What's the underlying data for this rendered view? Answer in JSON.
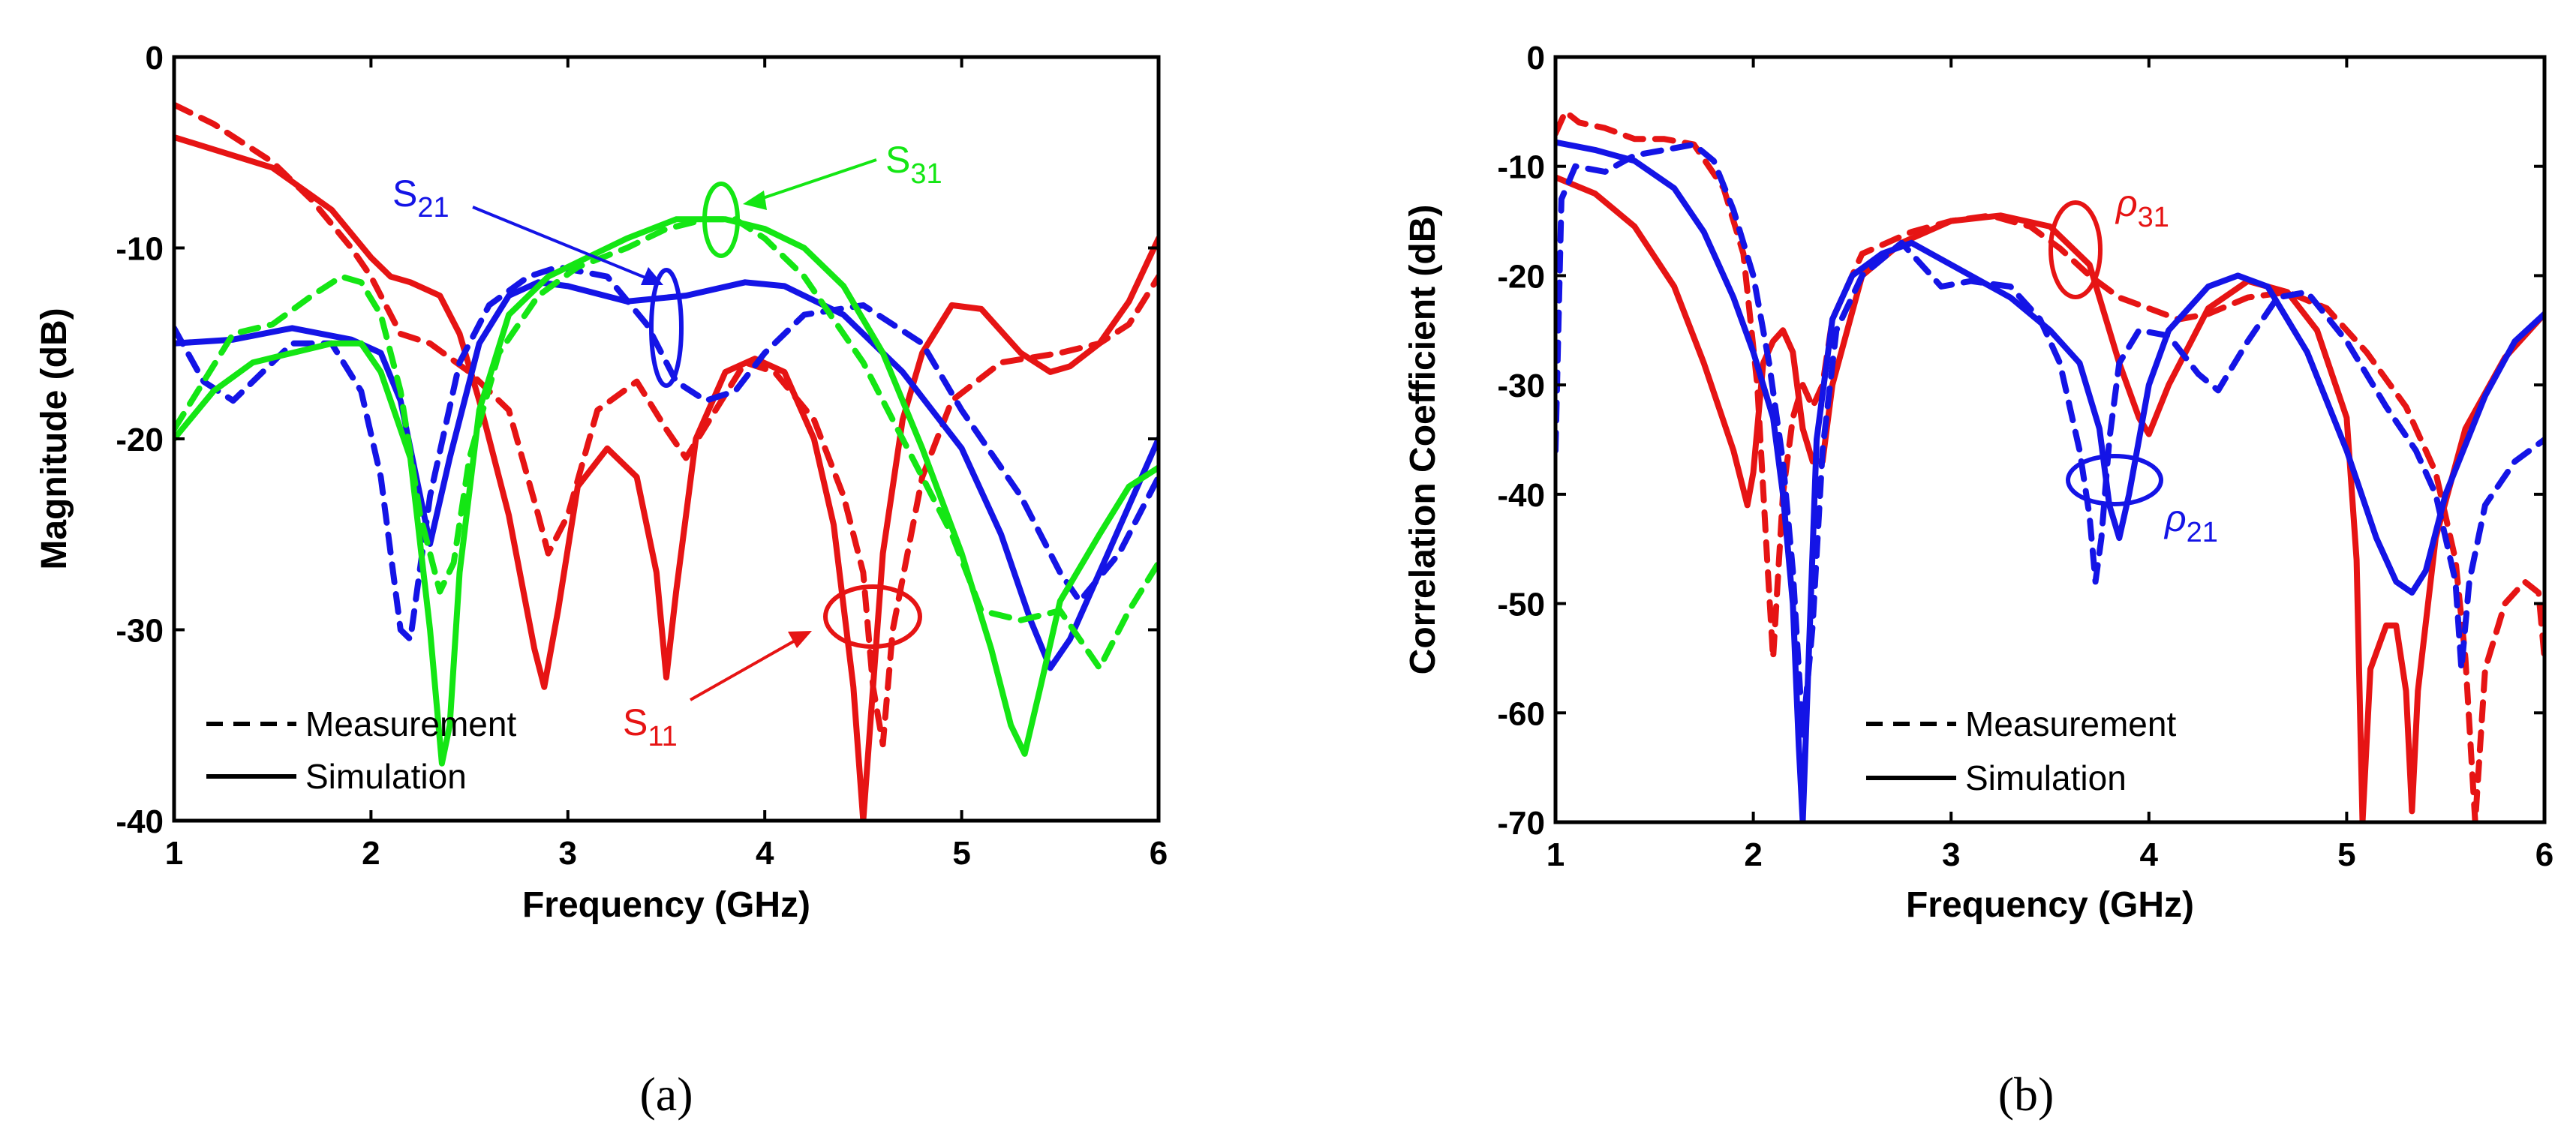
{
  "chart_data": [
    {
      "id": "a",
      "type": "line",
      "caption": "(a)",
      "xlabel": "Frequency (GHz)",
      "ylabel": "Magnitude (dB)",
      "xlim": [
        1,
        6
      ],
      "ylim": [
        -40,
        0
      ],
      "xticks": [
        "1",
        "2",
        "3",
        "4",
        "5",
        "6"
      ],
      "yticks": [
        "0",
        "-10",
        "-20",
        "-30",
        "-40"
      ],
      "legend": [
        {
          "label": "Measurement",
          "style": "dashed"
        },
        {
          "label": "Simulation",
          "style": "solid"
        }
      ],
      "annotations": [
        {
          "base": "S",
          "sub": "21",
          "color": "#1414e6"
        },
        {
          "base": "S",
          "sub": "31",
          "color": "#14e614"
        },
        {
          "base": "S",
          "sub": "11",
          "color": "#e61414"
        }
      ],
      "series": [
        {
          "name": "S11 Simulation",
          "color": "#e61414",
          "style": "solid",
          "x": [
            1,
            1.5,
            1.8,
            2.0,
            2.1,
            2.2,
            2.35,
            2.45,
            2.55,
            2.7,
            2.83,
            2.88,
            2.95,
            3.05,
            3.2,
            3.35,
            3.45,
            3.5,
            3.55,
            3.65,
            3.8,
            3.95,
            4.1,
            4.25,
            4.35,
            4.45,
            4.5,
            4.55,
            4.6,
            4.7,
            4.8,
            4.95,
            5.1,
            5.3,
            5.45,
            5.55,
            5.7,
            5.85,
            6.0
          ],
          "y": [
            -4.2,
            -5.8,
            -8.0,
            -10.5,
            -11.5,
            -11.8,
            -12.5,
            -14.5,
            -18.0,
            -24.0,
            -31.0,
            -33.0,
            -29.0,
            -22.5,
            -20.5,
            -22.0,
            -27.0,
            -32.5,
            -28.0,
            -20.0,
            -16.5,
            -15.8,
            -16.5,
            -20.0,
            -24.5,
            -33.0,
            -40.0,
            -33.0,
            -26.0,
            -19.0,
            -15.5,
            -13.0,
            -13.2,
            -15.5,
            -16.5,
            -16.2,
            -15.0,
            -12.8,
            -9.5
          ]
        },
        {
          "name": "S11 Measurement",
          "color": "#e61414",
          "style": "dashed",
          "x": [
            1,
            1.2,
            1.5,
            1.7,
            1.9,
            2.0,
            2.15,
            2.3,
            2.5,
            2.7,
            2.85,
            2.9,
            3.0,
            3.15,
            3.35,
            3.5,
            3.6,
            3.75,
            3.9,
            4.05,
            4.25,
            4.4,
            4.5,
            4.55,
            4.6,
            4.65,
            4.8,
            4.95,
            5.2,
            5.5,
            5.7,
            5.85,
            6.0
          ],
          "y": [
            -2.5,
            -3.5,
            -5.5,
            -7.5,
            -10.0,
            -11.5,
            -14.5,
            -15.0,
            -16.5,
            -18.5,
            -24.0,
            -26.0,
            -24.0,
            -18.5,
            -17.0,
            -19.5,
            -21.0,
            -18.5,
            -16.0,
            -16.5,
            -19.0,
            -23.0,
            -27.0,
            -33.0,
            -36.0,
            -30.0,
            -22.0,
            -18.0,
            -16.0,
            -15.5,
            -15.0,
            -14.0,
            -11.5
          ]
        },
        {
          "name": "S21 Simulation",
          "color": "#1414e6",
          "style": "solid",
          "x": [
            1,
            1.3,
            1.6,
            1.9,
            2.05,
            2.15,
            2.25,
            2.3,
            2.4,
            2.55,
            2.7,
            2.85,
            3.0,
            3.3,
            3.6,
            3.9,
            4.1,
            4.4,
            4.7,
            5.0,
            5.2,
            5.35,
            5.45,
            5.55,
            5.7,
            5.85,
            6.0
          ],
          "y": [
            -15.0,
            -14.8,
            -14.2,
            -14.8,
            -15.5,
            -18.0,
            -23.0,
            -25.5,
            -21.0,
            -15.0,
            -12.5,
            -11.8,
            -12.0,
            -12.8,
            -12.5,
            -11.8,
            -12.0,
            -13.5,
            -16.5,
            -20.5,
            -25.0,
            -29.5,
            -32.0,
            -30.5,
            -27.0,
            -23.5,
            -20.0
          ]
        },
        {
          "name": "S21 Measurement",
          "color": "#1414e6",
          "style": "dashed",
          "x": [
            1,
            1.15,
            1.3,
            1.45,
            1.6,
            1.8,
            1.95,
            2.05,
            2.15,
            2.2,
            2.3,
            2.45,
            2.6,
            2.8,
            2.95,
            3.2,
            3.4,
            3.55,
            3.7,
            3.85,
            4.0,
            4.2,
            4.5,
            4.8,
            5.0,
            5.3,
            5.5,
            5.6,
            5.8,
            6.0
          ],
          "y": [
            -14.2,
            -17.0,
            -18.0,
            -16.5,
            -15.0,
            -15.0,
            -17.5,
            -22.0,
            -30.0,
            -30.5,
            -23.0,
            -16.0,
            -13.0,
            -11.5,
            -11.0,
            -11.5,
            -14.0,
            -17.0,
            -18.0,
            -17.5,
            -15.5,
            -13.5,
            -13.0,
            -15.0,
            -18.5,
            -23.0,
            -27.0,
            -28.5,
            -26.0,
            -22.0
          ]
        },
        {
          "name": "S31 Simulation",
          "color": "#14e614",
          "style": "solid",
          "x": [
            1,
            1.2,
            1.4,
            1.6,
            1.8,
            1.95,
            2.05,
            2.2,
            2.3,
            2.36,
            2.4,
            2.45,
            2.55,
            2.7,
            2.9,
            3.1,
            3.3,
            3.55,
            3.8,
            4.0,
            4.2,
            4.4,
            4.6,
            4.8,
            5.0,
            5.15,
            5.25,
            5.32,
            5.4,
            5.5,
            5.7,
            5.85,
            6.0
          ],
          "y": [
            -20.0,
            -17.5,
            -16.0,
            -15.5,
            -15.0,
            -15.0,
            -16.5,
            -21.0,
            -30.0,
            -37.0,
            -35.0,
            -27.0,
            -18.5,
            -13.5,
            -11.5,
            -10.5,
            -9.5,
            -8.5,
            -8.5,
            -9.0,
            -10.0,
            -12.0,
            -15.5,
            -20.5,
            -26.0,
            -31.0,
            -35.0,
            -36.5,
            -33.0,
            -28.5,
            -25.0,
            -22.5,
            -21.5
          ]
        },
        {
          "name": "S31 Measurement",
          "color": "#14e614",
          "style": "dashed",
          "x": [
            1,
            1.15,
            1.3,
            1.5,
            1.7,
            1.85,
            1.95,
            2.05,
            2.15,
            2.25,
            2.35,
            2.42,
            2.5,
            2.65,
            2.85,
            3.05,
            3.3,
            3.5,
            3.7,
            3.85,
            4.0,
            4.2,
            4.5,
            4.75,
            4.95,
            5.1,
            5.3,
            5.5,
            5.6,
            5.7,
            5.85,
            6.0
          ],
          "y": [
            -19.5,
            -17.0,
            -14.5,
            -14.0,
            -12.5,
            -11.5,
            -11.8,
            -13.5,
            -17.5,
            -24.0,
            -28.0,
            -26.5,
            -21.0,
            -15.5,
            -12.5,
            -11.0,
            -10.0,
            -9.0,
            -8.5,
            -8.5,
            -9.5,
            -11.5,
            -16.0,
            -21.0,
            -25.0,
            -29.0,
            -29.5,
            -29.0,
            -30.5,
            -32.0,
            -29.0,
            -26.5
          ]
        }
      ]
    },
    {
      "id": "b",
      "type": "line",
      "caption": "(b)",
      "xlabel": "Frequency (GHz)",
      "ylabel": "Correlation Coefficient (dB)",
      "xlim": [
        1,
        6
      ],
      "ylim": [
        -70,
        0
      ],
      "xticks": [
        "1",
        "2",
        "3",
        "4",
        "5",
        "6"
      ],
      "yticks": [
        "0",
        "-10",
        "-20",
        "-30",
        "-40",
        "-50",
        "-60",
        "-70"
      ],
      "legend": [
        {
          "label": "Measurement",
          "style": "dashed"
        },
        {
          "label": "Simulation",
          "style": "solid"
        }
      ],
      "annotations": [
        {
          "base": "ρ",
          "sub": "31",
          "color": "#e61414"
        },
        {
          "base": "ρ",
          "sub": "21",
          "color": "#1414e6"
        }
      ],
      "series": [
        {
          "name": "ρ31 Simulation",
          "color": "#e61414",
          "style": "solid",
          "x": [
            1,
            1.2,
            1.4,
            1.6,
            1.75,
            1.9,
            1.97,
            2.0,
            2.05,
            2.1,
            2.15,
            2.2,
            2.25,
            2.3,
            2.35,
            2.4,
            2.55,
            2.75,
            3.0,
            3.25,
            3.5,
            3.7,
            3.85,
            3.95,
            4.0,
            4.1,
            4.3,
            4.5,
            4.7,
            4.85,
            5.0,
            5.05,
            5.08,
            5.12,
            5.2,
            5.25,
            5.3,
            5.33,
            5.36,
            5.45,
            5.6,
            5.8,
            6.0
          ],
          "y": [
            -11.0,
            -12.5,
            -15.5,
            -21.0,
            -28.0,
            -36.0,
            -41.0,
            -38.0,
            -28.0,
            -26.0,
            -25.0,
            -27.0,
            -34.0,
            -37.0,
            -37.0,
            -30.0,
            -20.0,
            -17.0,
            -15.0,
            -14.5,
            -15.5,
            -19.0,
            -28.0,
            -33.0,
            -34.5,
            -30.0,
            -23.0,
            -20.5,
            -21.5,
            -25.0,
            -33.0,
            -46.0,
            -70.0,
            -56.0,
            -52.0,
            -52.0,
            -58.0,
            -69.0,
            -58.0,
            -44.0,
            -34.0,
            -27.5,
            -23.5
          ]
        },
        {
          "name": "ρ31 Measurement",
          "color": "#e61414",
          "style": "dashed",
          "x": [
            1,
            1.05,
            1.12,
            1.25,
            1.4,
            1.55,
            1.7,
            1.85,
            1.95,
            2.02,
            2.07,
            2.1,
            2.15,
            2.2,
            2.25,
            2.3,
            2.35,
            2.4,
            2.55,
            2.8,
            3.0,
            3.2,
            3.4,
            3.55,
            3.7,
            3.85,
            4.0,
            4.15,
            4.3,
            4.5,
            4.7,
            4.9,
            5.1,
            5.3,
            5.45,
            5.55,
            5.6,
            5.65,
            5.7,
            5.8,
            5.9,
            5.97,
            6.0
          ],
          "y": [
            -7.0,
            -5.0,
            -6.0,
            -6.5,
            -7.5,
            -7.5,
            -8.0,
            -12.0,
            -18.0,
            -30.0,
            -46.0,
            -55.0,
            -40.0,
            -33.0,
            -30.0,
            -32.0,
            -30.0,
            -24.0,
            -18.0,
            -16.0,
            -15.0,
            -14.5,
            -15.5,
            -17.5,
            -20.0,
            -22.0,
            -23.0,
            -24.0,
            -23.5,
            -22.0,
            -21.5,
            -23.0,
            -27.0,
            -32.0,
            -38.0,
            -46.0,
            -55.0,
            -70.0,
            -56.0,
            -50.0,
            -48.0,
            -49.0,
            -55.0
          ]
        },
        {
          "name": "ρ21 Simulation",
          "color": "#1414e6",
          "style": "solid",
          "x": [
            1,
            1.2,
            1.4,
            1.6,
            1.75,
            1.9,
            2.0,
            2.1,
            2.15,
            2.2,
            2.23,
            2.25,
            2.28,
            2.32,
            2.4,
            2.5,
            2.65,
            2.8,
            3.0,
            3.3,
            3.5,
            3.65,
            3.75,
            3.8,
            3.85,
            3.9,
            4.0,
            4.1,
            4.3,
            4.45,
            4.6,
            4.8,
            5.0,
            5.15,
            5.25,
            5.33,
            5.4,
            5.5,
            5.7,
            5.85,
            6.0
          ],
          "y": [
            -7.8,
            -8.5,
            -9.5,
            -12.0,
            -16.0,
            -22.0,
            -27.0,
            -33.0,
            -40.0,
            -50.0,
            -63.0,
            -70.0,
            -55.0,
            -35.0,
            -24.0,
            -20.0,
            -18.0,
            -17.0,
            -19.0,
            -22.0,
            -25.0,
            -28.0,
            -34.0,
            -41.0,
            -44.0,
            -40.0,
            -30.0,
            -25.0,
            -21.0,
            -20.0,
            -21.0,
            -27.0,
            -36.0,
            -44.0,
            -48.0,
            -49.0,
            -47.0,
            -40.0,
            -31.0,
            -26.0,
            -23.5
          ]
        },
        {
          "name": "ρ21 Measurement",
          "color": "#1414e6",
          "style": "dashed",
          "x": [
            1,
            1.03,
            1.1,
            1.25,
            1.4,
            1.55,
            1.7,
            1.8,
            1.9,
            2.0,
            2.08,
            2.15,
            2.2,
            2.25,
            2.3,
            2.35,
            2.42,
            2.55,
            2.75,
            2.95,
            3.1,
            3.3,
            3.45,
            3.55,
            3.65,
            3.7,
            3.73,
            3.76,
            3.8,
            3.85,
            3.95,
            4.1,
            4.25,
            4.35,
            4.5,
            4.65,
            4.8,
            5.0,
            5.2,
            5.35,
            5.45,
            5.55,
            5.58,
            5.62,
            5.7,
            5.85,
            6.0
          ],
          "y": [
            -36.0,
            -13.0,
            -10.0,
            -10.5,
            -9.0,
            -8.5,
            -8.0,
            -9.5,
            -14.0,
            -20.0,
            -28.0,
            -37.0,
            -47.0,
            -62.0,
            -52.0,
            -36.0,
            -25.0,
            -20.0,
            -17.0,
            -21.0,
            -20.5,
            -21.0,
            -24.0,
            -28.0,
            -36.0,
            -42.0,
            -48.0,
            -44.0,
            -35.0,
            -28.0,
            -25.0,
            -25.5,
            -29.0,
            -30.5,
            -26.0,
            -22.0,
            -21.5,
            -26.0,
            -32.0,
            -36.0,
            -40.0,
            -48.0,
            -56.0,
            -48.0,
            -41.0,
            -37.0,
            -35.0
          ]
        }
      ]
    }
  ]
}
